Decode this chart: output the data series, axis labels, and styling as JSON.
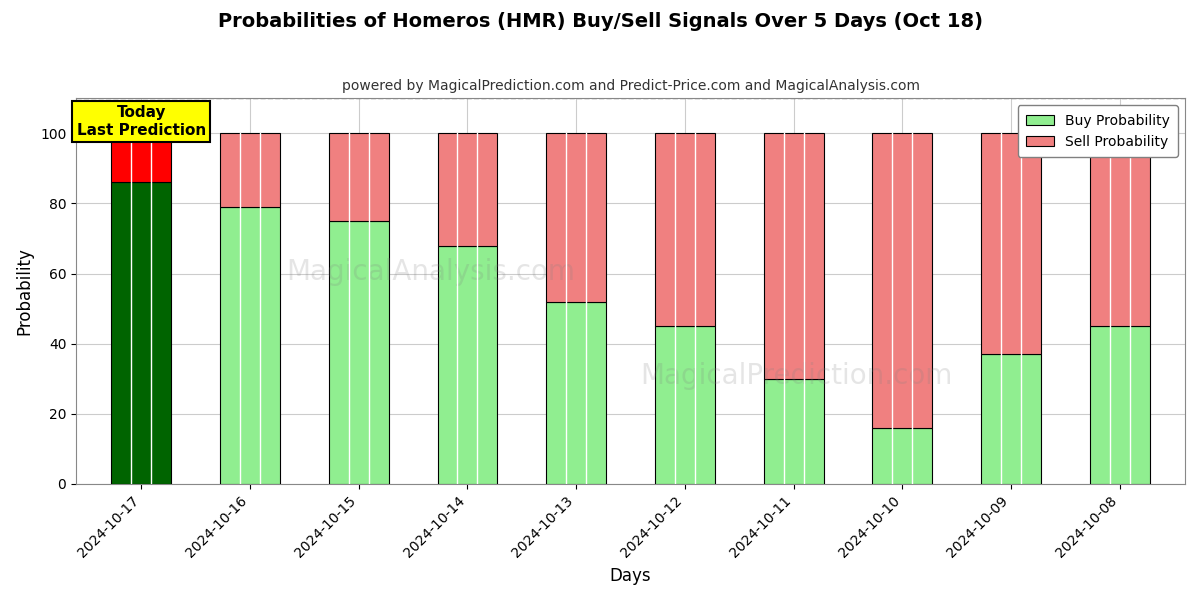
{
  "title": "Probabilities of Homeros (HMR) Buy/Sell Signals Over 5 Days (Oct 18)",
  "subtitle": "powered by MagicalPrediction.com and Predict-Price.com and MagicalAnalysis.com",
  "xlabel": "Days",
  "ylabel": "Probability",
  "dates": [
    "2024-10-17",
    "2024-10-16",
    "2024-10-15",
    "2024-10-14",
    "2024-10-13",
    "2024-10-12",
    "2024-10-11",
    "2024-10-10",
    "2024-10-09",
    "2024-10-08"
  ],
  "buy_values": [
    86,
    79,
    75,
    68,
    52,
    45,
    30,
    16,
    37,
    45
  ],
  "sell_values": [
    14,
    21,
    25,
    32,
    48,
    55,
    70,
    84,
    63,
    55
  ],
  "buy_color_today": "#006400",
  "sell_color_today": "#FF0000",
  "buy_color_normal": "#90EE90",
  "sell_color_normal": "#F08080",
  "bar_edge_color": "#000000",
  "bar_edge_width": 0.8,
  "today_annotation_text": "Today\nLast Prediction",
  "today_annotation_bg": "#FFFF00",
  "legend_buy": "Buy Probability",
  "legend_sell": "Sell Probability",
  "ylim": [
    0,
    110
  ],
  "watermark_lines": [
    "MagicalAnalysis.com",
    "MagicalPrediction.com"
  ],
  "background_color": "#FFFFFF",
  "grid_color": "#CCCCCC",
  "bar_width": 0.55,
  "internal_dividers": 2
}
